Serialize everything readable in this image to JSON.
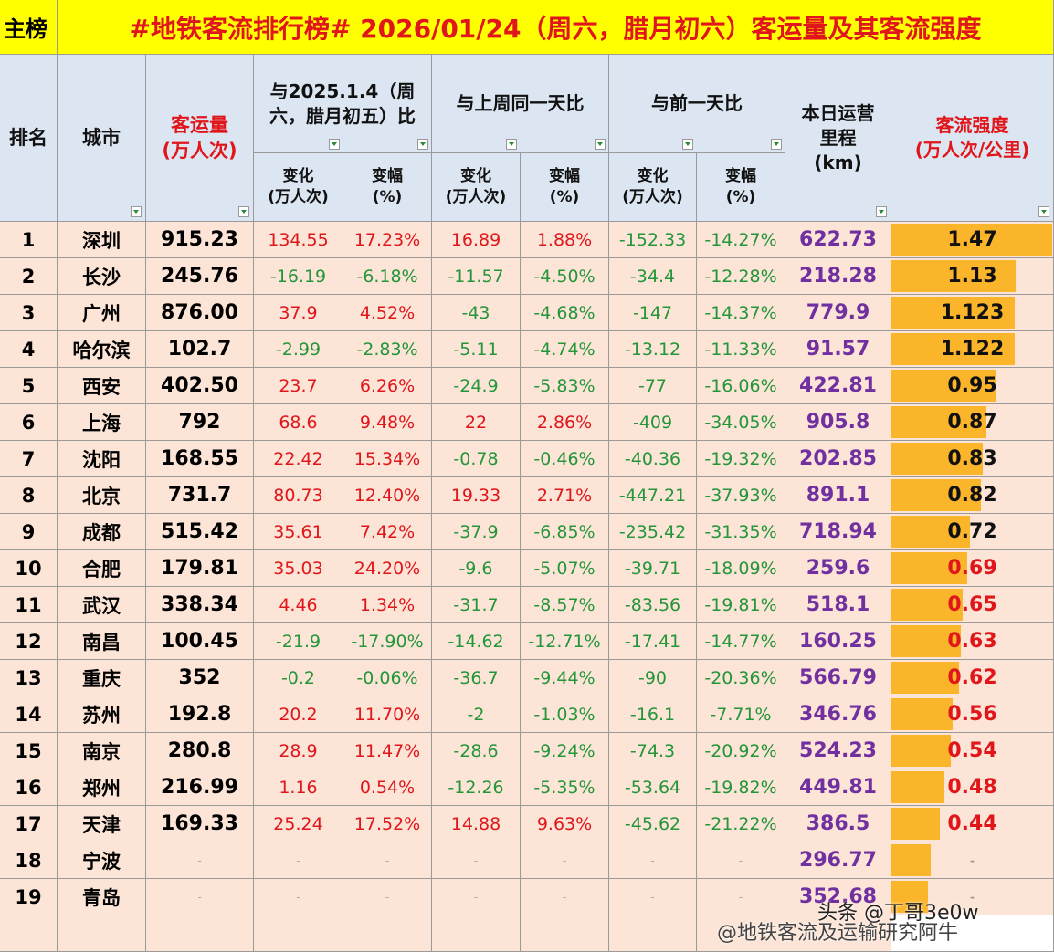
{
  "header": {
    "tag": "主榜",
    "title": "#地铁客流排行榜# 2026/01/24（周六，腊月初六）客运量及其客流强度"
  },
  "table": {
    "columns": {
      "rank": "排名",
      "city": "城市",
      "volume": "客运量\n(万人次)",
      "group1": "与2025.1.4（周\n六，腊月初五）比",
      "group2": "与上周同一天比",
      "group3": "与前一天比",
      "sub": [
        "变化\n(万人次)",
        "变幅\n(%)",
        "变化\n(万人次)",
        "变幅\n(%)",
        "变化\n(万人次)",
        "变幅\n(%)"
      ],
      "mileage": "本日运营\n里程\n(km)",
      "intensity": "客流强度\n(万人次/公里)"
    },
    "highlight_below": 0.7,
    "rows": [
      {
        "cells": [
          "1",
          "深圳",
          "915.23",
          "134.55",
          "17.23%",
          "16.89",
          "1.88%",
          "-152.33",
          "-14.27%",
          "622.73",
          1.47
        ]
      },
      {
        "cells": [
          "2",
          "长沙",
          "245.76",
          "-16.19",
          "-6.18%",
          "-11.57",
          "-4.50%",
          "-34.4",
          "-12.28%",
          "218.28",
          1.13
        ]
      },
      {
        "cells": [
          "3",
          "广州",
          "876.00",
          "37.9",
          "4.52%",
          "-43",
          "-4.68%",
          "-147",
          "-14.37%",
          "779.9",
          1.123
        ]
      },
      {
        "cells": [
          "4",
          "哈尔滨",
          "102.7",
          "-2.99",
          "-2.83%",
          "-5.11",
          "-4.74%",
          "-13.12",
          "-11.33%",
          "91.57",
          1.122
        ]
      },
      {
        "cells": [
          "5",
          "西安",
          "402.50",
          "23.7",
          "6.26%",
          "-24.9",
          "-5.83%",
          "-77",
          "-16.06%",
          "422.81",
          0.95
        ]
      },
      {
        "cells": [
          "6",
          "上海",
          "792",
          "68.6",
          "9.48%",
          "22",
          "2.86%",
          "-409",
          "-34.05%",
          "905.8",
          0.87
        ]
      },
      {
        "cells": [
          "7",
          "沈阳",
          "168.55",
          "22.42",
          "15.34%",
          "-0.78",
          "-0.46%",
          "-40.36",
          "-19.32%",
          "202.85",
          0.83
        ]
      },
      {
        "cells": [
          "8",
          "北京",
          "731.7",
          "80.73",
          "12.40%",
          "19.33",
          "2.71%",
          "-447.21",
          "-37.93%",
          "891.1",
          0.82
        ]
      },
      {
        "cells": [
          "9",
          "成都",
          "515.42",
          "35.61",
          "7.42%",
          "-37.9",
          "-6.85%",
          "-235.42",
          "-31.35%",
          "718.94",
          0.72
        ]
      },
      {
        "cells": [
          "10",
          "合肥",
          "179.81",
          "35.03",
          "24.20%",
          "-9.6",
          "-5.07%",
          "-39.71",
          "-18.09%",
          "259.6",
          0.69
        ]
      },
      {
        "cells": [
          "11",
          "武汉",
          "338.34",
          "4.46",
          "1.34%",
          "-31.7",
          "-8.57%",
          "-83.56",
          "-19.81%",
          "518.1",
          0.65
        ]
      },
      {
        "cells": [
          "12",
          "南昌",
          "100.45",
          "-21.9",
          "-17.90%",
          "-14.62",
          "-12.71%",
          "-17.41",
          "-14.77%",
          "160.25",
          0.63
        ]
      },
      {
        "cells": [
          "13",
          "重庆",
          "352",
          "-0.2",
          "-0.06%",
          "-36.7",
          "-9.44%",
          "-90",
          "-20.36%",
          "566.79",
          0.62
        ]
      },
      {
        "cells": [
          "14",
          "苏州",
          "192.8",
          "20.2",
          "11.70%",
          "-2",
          "-1.03%",
          "-16.1",
          "-7.71%",
          "346.76",
          0.56
        ]
      },
      {
        "cells": [
          "15",
          "南京",
          "280.8",
          "28.9",
          "11.47%",
          "-28.6",
          "-9.24%",
          "-74.3",
          "-20.92%",
          "524.23",
          0.54
        ]
      },
      {
        "cells": [
          "16",
          "郑州",
          "216.99",
          "1.16",
          "0.54%",
          "-12.26",
          "-5.35%",
          "-53.64",
          "-19.82%",
          "449.81",
          0.48
        ]
      },
      {
        "cells": [
          "17",
          "天津",
          "169.33",
          "25.24",
          "17.52%",
          "14.88",
          "9.63%",
          "-45.62",
          "-21.22%",
          "386.5",
          0.44
        ]
      },
      {
        "cells": [
          "18",
          "宁波",
          "-",
          "-",
          "-",
          "-",
          "-",
          "-",
          "-",
          "296.77",
          "-"
        ],
        "bar": 0.36
      },
      {
        "cells": [
          "19",
          "青岛",
          "-",
          "-",
          "-",
          "-",
          "-",
          "-",
          "-",
          "352.68",
          "-"
        ],
        "bar": 0.33
      }
    ]
  },
  "watermarks": [
    "头条 @丁哥3e0w",
    "@地铁客流及运输研究阿牛"
  ]
}
